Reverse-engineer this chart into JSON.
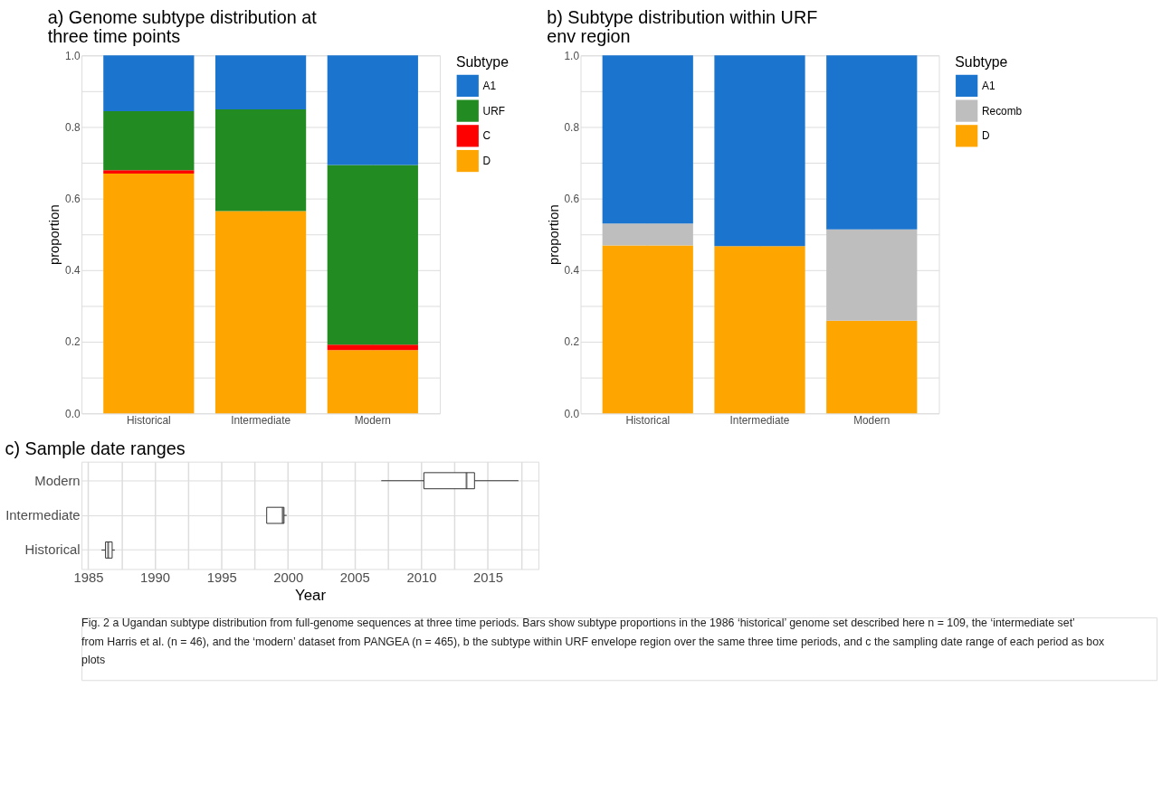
{
  "chart_data": [
    {
      "type": "bar",
      "title": "a) Genome subtype distribution at\n three time points",
      "ylabel": "proportion",
      "legend_title": "Subtype",
      "legend": "right",
      "stacked": true,
      "grid": true,
      "categories": [
        "Historical",
        "Intermediate",
        "Modern"
      ],
      "series": [
        {
          "name": "D",
          "color": "#ffa500",
          "values": [
            0.67,
            0.565,
            0.177
          ]
        },
        {
          "name": "C",
          "color": "#ff0000",
          "values": [
            0.009,
            0,
            0.015
          ]
        },
        {
          "name": "URF",
          "color": "#228b22",
          "values": [
            0.165,
            0.284,
            0.502
          ]
        },
        {
          "name": "A1",
          "color": "#1b75cf",
          "values": [
            0.156,
            0.151,
            0.306
          ]
        }
      ],
      "ylim": [
        0,
        1.0
      ],
      "yticks": [
        {
          "value": 0,
          "label": "0.0"
        },
        {
          "value": 0.1,
          "label": null
        },
        0.2,
        {
          "value": 0.3,
          "label": null
        },
        0.4,
        {
          "value": 0.5,
          "label": null
        },
        0.6,
        {
          "value": 0.7,
          "label": null
        },
        0.8,
        {
          "value": 0.9,
          "label": null
        },
        {
          "value": 1.0,
          "label": "1.0"
        }
      ]
    },
    {
      "type": "bar",
      "title": "b) Subtype distribution within URF\n env region",
      "ylabel": "proportion",
      "legend_title": "Subtype",
      "legend": "right",
      "stacked": true,
      "grid": true,
      "categories": [
        "Historical",
        "Intermediate",
        "Modern"
      ],
      "series": [
        {
          "name": "D",
          "color": "#ffa500",
          "values": [
            0.469,
            0.467,
            0.259
          ]
        },
        {
          "name": "Recomb",
          "color": "#bebebe",
          "values": [
            0.061,
            0,
            0.255
          ]
        },
        {
          "name": "A1",
          "color": "#1b75cf",
          "values": [
            0.47,
            0.533,
            0.486
          ]
        }
      ],
      "ylim": [
        0,
        1.0
      ],
      "yticks": [
        {
          "value": 0,
          "label": "0.0"
        },
        {
          "value": 0.1,
          "label": null
        },
        0.2,
        {
          "value": 0.3,
          "label": null
        },
        0.4,
        {
          "value": 0.5,
          "label": null
        },
        0.6,
        {
          "value": 0.7,
          "label": null
        },
        0.8,
        {
          "value": 0.9,
          "label": null
        },
        {
          "value": 1.0,
          "label": "1.0"
        }
      ]
    },
    {
      "type": "box",
      "title": "c) Sample date ranges",
      "xlabel": "Year",
      "grid": true,
      "orientation": "horizontal",
      "categories": [
        "Modern",
        "Intermediate",
        "Historical"
      ],
      "boxes": [
        {
          "low": 2007.0,
          "q1": 2010.2,
          "median": 2013.4,
          "q3": 2014.0,
          "high": 2017.3
        },
        {
          "low": 1998.4,
          "q1": 1998.4,
          "median": 1999.6,
          "q3": 1999.7,
          "high": 1999.9
        },
        {
          "low": 1986.0,
          "q1": 1986.3,
          "median": 1986.5,
          "q3": 1986.8,
          "high": 1987.0
        }
      ],
      "xlim": [
        1984.5,
        2018.8
      ],
      "xticks": [
        1985,
        {
          "value": 1987.5,
          "label": null
        },
        1990,
        {
          "value": 1992.5,
          "label": null
        },
        1995,
        {
          "value": 1997.5,
          "label": null
        },
        2000,
        {
          "value": 2002.5,
          "label": null
        },
        2005,
        {
          "value": 2007.5,
          "label": null
        },
        2010,
        {
          "value": 2012.5,
          "label": null
        },
        2015,
        {
          "value": 2017.5,
          "label": null
        }
      ],
      "annotations": [
        "Fig. 2  a Ugandan subtype distribution from full-genome sequences at three time periods. Bars show subtype proportions in the 1986 ‘historical’ genome set described here n = 109, the ‘intermediate set’ from Harris et al. (n = 46), and the ‘modern’ dataset from PANGEA (n = 465), b the subtype within URF envelope region over the same three time periods, and c the sampling date range of each period as box plots"
      ]
    }
  ]
}
